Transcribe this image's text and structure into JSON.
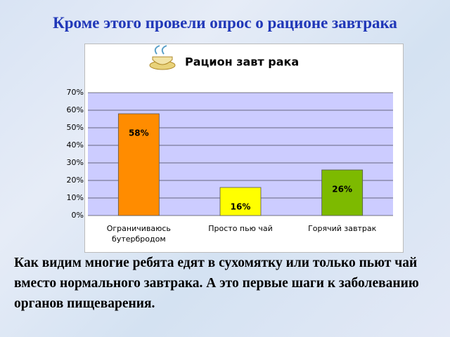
{
  "slide_title": "Кроме этого провели опрос о рационе завтрака",
  "chart_data": {
    "type": "bar",
    "title": "Рацион завт рака",
    "categories": [
      "Ограничиваюсь бутербродом",
      "Просто пью чай",
      "Горячий завтрак"
    ],
    "values": [
      58,
      16,
      26
    ],
    "value_labels": [
      "58%",
      "16%",
      "26%"
    ],
    "colors": [
      "#ff8c00",
      "#ffff00",
      "#7dba00"
    ],
    "ylim": [
      0,
      70
    ],
    "yticks": [
      {
        "value": 0,
        "label": "0%"
      },
      {
        "value": 10,
        "label": "10%"
      },
      {
        "value": 20,
        "label": "20%"
      },
      {
        "value": 30,
        "label": "30%"
      },
      {
        "value": 40,
        "label": "40%"
      },
      {
        "value": 50,
        "label": "50%"
      },
      {
        "value": 60,
        "label": "60%"
      },
      {
        "value": 70,
        "label": "70%"
      }
    ],
    "grid": true
  },
  "caption": "Как видим многие ребята едят в сухомятку или только пьют чай вместо нормального завтрака. А это первые шаги к заболеванию органов пищеварения."
}
